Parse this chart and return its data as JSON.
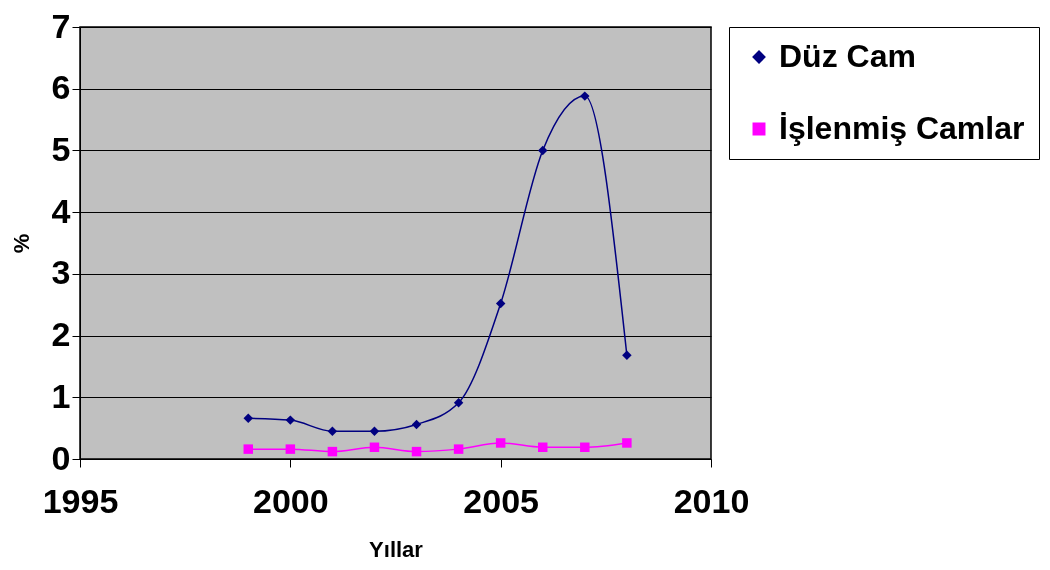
{
  "chart_data": {
    "type": "line",
    "xlabel": "Yıllar",
    "ylabel": "%",
    "x": [
      1999,
      2000,
      2001,
      2002,
      2003,
      2004,
      2005,
      2006,
      2007,
      2008
    ],
    "series": [
      {
        "name": "Düz Cam",
        "color": "#000080",
        "marker": "diamond",
        "values": [
          0.66,
          0.63,
          0.45,
          0.45,
          0.56,
          0.91,
          2.52,
          5.0,
          5.88,
          1.68
        ]
      },
      {
        "name": "İşlenmiş Camlar",
        "color": "#ff00ff",
        "marker": "square",
        "values": [
          0.16,
          0.16,
          0.12,
          0.19,
          0.12,
          0.16,
          0.26,
          0.19,
          0.19,
          0.26
        ]
      }
    ],
    "xlim": [
      1995,
      2010
    ],
    "xticks": [
      1995,
      2000,
      2005,
      2010
    ],
    "ylim": [
      0,
      7
    ],
    "yticks": [
      0,
      1,
      2,
      3,
      4,
      5,
      6,
      7
    ],
    "grid": "y",
    "legend": "right",
    "line_style": "solid"
  }
}
